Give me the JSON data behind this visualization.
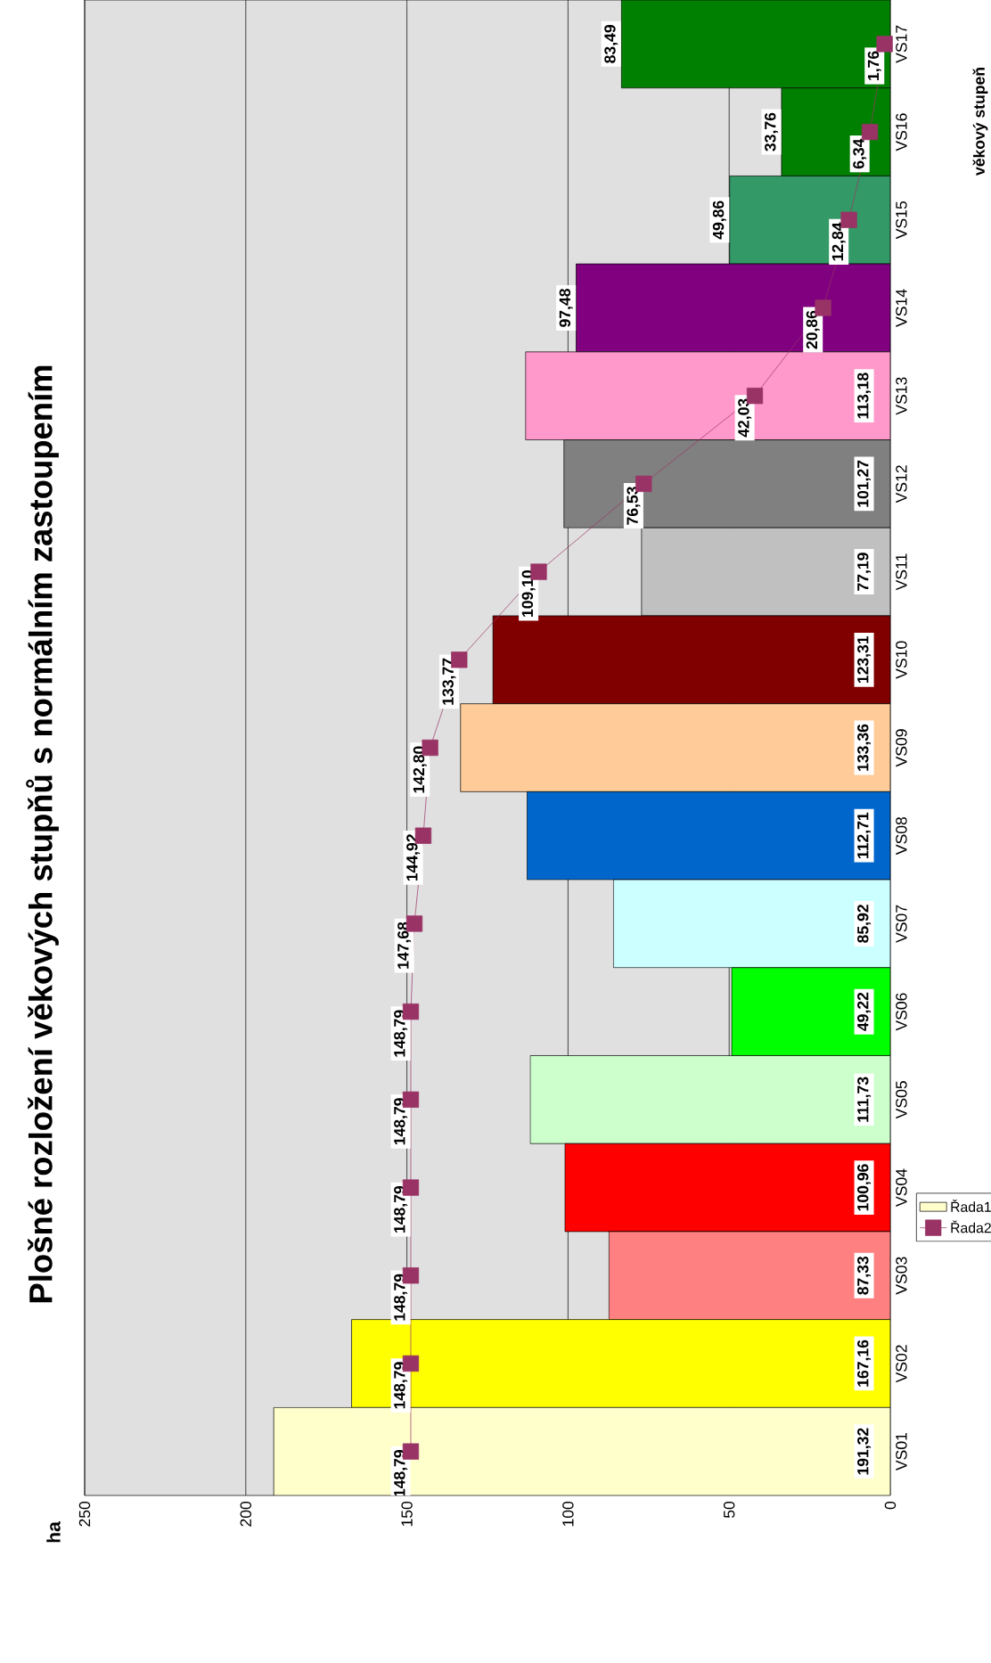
{
  "chart_data": {
    "type": "bar",
    "orientation": "horizontal",
    "title": "Plošné rozložení věkových stupňů s normálním zastoupením",
    "annotations": [
      "ha"
    ],
    "ylabel": "věkový stupeň",
    "categories": [
      "VS17",
      "VS16",
      "VS15",
      "VS14",
      "VS13",
      "VS12",
      "VS11",
      "VS10",
      "VS09",
      "VS08",
      "VS07",
      "VS06",
      "VS05",
      "VS04",
      "VS03",
      "VS02",
      "VS01"
    ],
    "series": [
      {
        "name": "Řada1",
        "color": "#ffffcc",
        "colors": [
          "#008000",
          "#008000",
          "#339966",
          "#800080",
          "#ff99cc",
          "#808080",
          "#c0c0c0",
          "#800000",
          "#ffcc99",
          "#0066cc",
          "#ccffff",
          "#00ff00",
          "#ccffcc",
          "#ff0000",
          "#ff8080",
          "#ffff00",
          "#ffffcc"
        ],
        "values": [
          83.49,
          33.76,
          49.86,
          97.48,
          113.18,
          101.27,
          77.19,
          123.31,
          133.36,
          112.71,
          85.92,
          49.22,
          111.73,
          100.96,
          87.33,
          167.16,
          191.32
        ],
        "value_labels": [
          "83,49",
          "33,76",
          "49,86",
          "97,48",
          "113,18",
          "101,27",
          "77,19",
          "123,31",
          "133,36",
          "112,71",
          "85,92",
          "49,22",
          "111,73",
          "100,96",
          "87,33",
          "167,16",
          "191,32"
        ]
      },
      {
        "name": "Řada2",
        "type": "line",
        "color": "#993366",
        "marker": "square",
        "values": [
          1.76,
          6.34,
          12.84,
          20.86,
          42.03,
          76.53,
          109.1,
          133.77,
          142.8,
          144.92,
          147.68,
          148.79,
          148.79,
          148.79,
          148.79,
          148.79,
          148.79
        ],
        "value_labels": [
          "1,76",
          "6,34",
          "12,84",
          "20,86",
          "42,03",
          "76,53",
          "109,10",
          "133,77",
          "142,80",
          "144,92",
          "147,68",
          "148,79",
          "148,79",
          "148,79",
          "148,79",
          "148,79",
          "148,79"
        ]
      }
    ],
    "xlim": [
      250,
      0
    ],
    "xticks": [
      250,
      200,
      150,
      100,
      50,
      0
    ],
    "grid": "x",
    "legend": "right"
  }
}
